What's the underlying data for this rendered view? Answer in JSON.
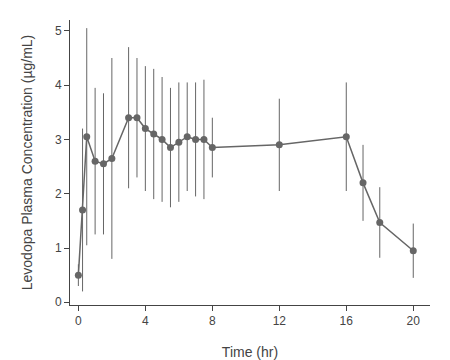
{
  "chart_data": {
    "type": "line",
    "x": [
      0,
      0.25,
      0.5,
      1,
      1.5,
      2,
      3,
      3.5,
      4,
      4.5,
      5,
      5.5,
      6,
      6.5,
      7,
      7.5,
      8,
      12,
      16,
      17,
      18,
      20
    ],
    "series": [
      {
        "values": [
          0.5,
          1.7,
          3.05,
          2.6,
          2.55,
          2.65,
          3.4,
          3.4,
          3.2,
          3.1,
          3.0,
          2.85,
          2.95,
          3.05,
          3.0,
          3.0,
          2.85,
          2.9,
          3.05,
          2.2,
          1.47,
          0.95
        ],
        "error": [
          0.2,
          1.5,
          2.0,
          1.35,
          1.3,
          1.85,
          1.3,
          1.1,
          1.15,
          1.2,
          1.15,
          1.1,
          1.1,
          1.0,
          1.05,
          1.1,
          0.55,
          0.85,
          1.0,
          0.7,
          0.65,
          0.5
        ],
        "color": "#666666",
        "marker": "circle",
        "line_style": "solid"
      }
    ],
    "xlabel": "Time (hr)",
    "ylabel": "Levodopa Plasma Concentration (µg/mL)",
    "xlim": [
      -0.5,
      21
    ],
    "ylim": [
      -0.05,
      5.2
    ],
    "xticks": [
      0,
      4,
      8,
      12,
      16,
      20
    ],
    "yticks": [
      0,
      1,
      2,
      3,
      4,
      5
    ],
    "grid": false
  }
}
